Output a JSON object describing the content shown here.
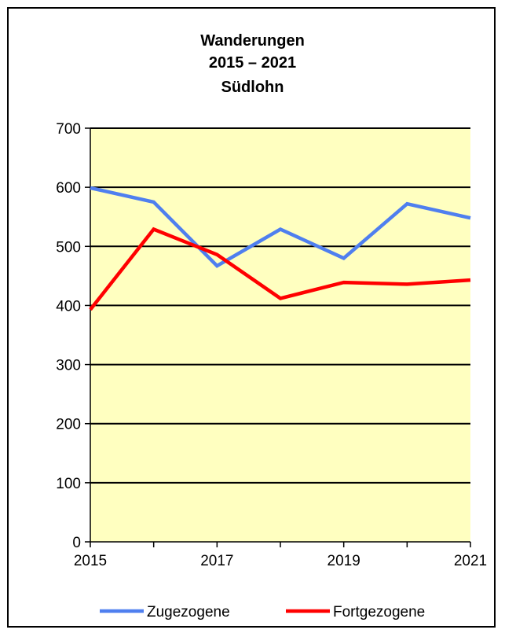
{
  "chart_data": {
    "type": "line",
    "title": [
      "Wanderungen",
      "2015 – 2021",
      "Südlohn"
    ],
    "x": [
      2015,
      2016,
      2017,
      2018,
      2019,
      2020,
      2021
    ],
    "x_tick_labels": [
      "2015",
      "2017",
      "2019",
      "2021"
    ],
    "ylim": [
      0,
      700
    ],
    "y_ticks": [
      0,
      100,
      200,
      300,
      400,
      500,
      600,
      700
    ],
    "grid": true,
    "legend_position": "bottom",
    "plot_background": "#ffffc0",
    "series": [
      {
        "name": "Zugezogene",
        "color": "#4f7fef",
        "values": [
          599,
          575,
          467,
          529,
          480,
          572,
          548
        ]
      },
      {
        "name": "Fortgezogene",
        "color": "#ff0000",
        "values": [
          393,
          529,
          486,
          412,
          439,
          436,
          443
        ]
      }
    ]
  }
}
